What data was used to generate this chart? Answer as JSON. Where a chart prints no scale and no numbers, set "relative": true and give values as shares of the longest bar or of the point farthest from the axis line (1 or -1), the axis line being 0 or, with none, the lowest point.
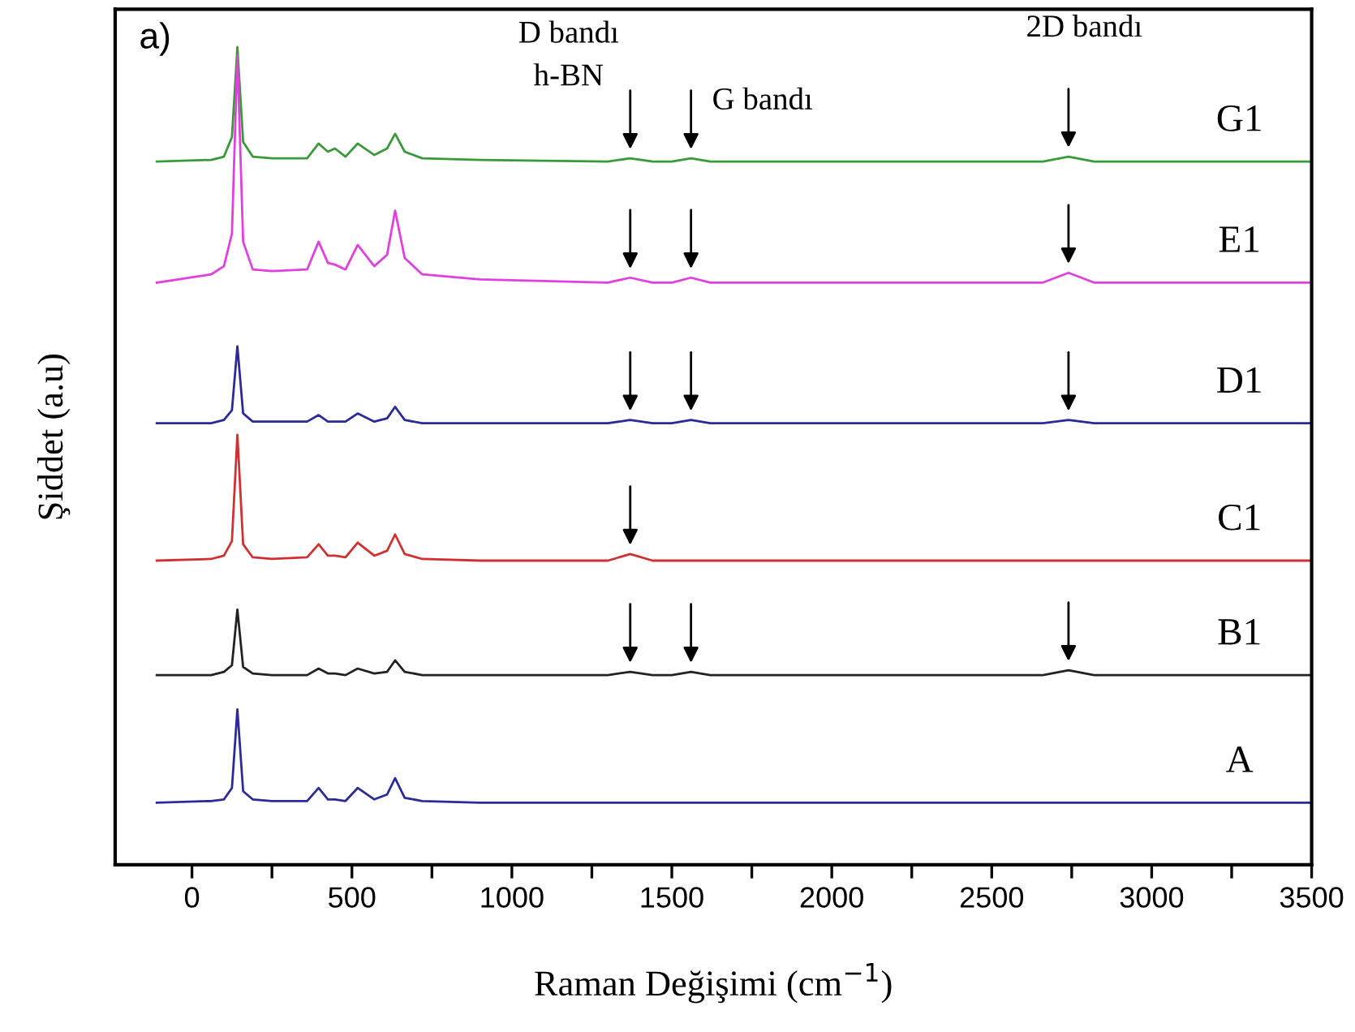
{
  "chart_data": {
    "type": "line",
    "relative": true,
    "xlabel": "Raman Değişimi (cm$^{−1}$)",
    "ylabel": "Şiddet (a.u)",
    "x": [
      -110,
      60,
      100,
      125,
      142,
      160,
      190,
      250,
      360,
      396,
      425,
      447,
      480,
      518,
      570,
      610,
      635,
      665,
      720,
      900,
      1300,
      1370,
      1440,
      1500,
      1560,
      1620,
      2660,
      2740,
      2820,
      3500
    ],
    "xlim": [
      -240,
      3500
    ],
    "xticks": [
      0,
      {
        "value": 250,
        "label": null
      },
      500,
      {
        "value": 750,
        "label": null
      },
      1000,
      {
        "value": 1250,
        "label": null
      },
      1500,
      {
        "value": 1750,
        "label": null
      },
      2000,
      {
        "value": 2250,
        "label": null
      },
      2500,
      {
        "value": 2750,
        "label": null
      },
      3000,
      {
        "value": 3250,
        "label": null
      },
      3500
    ],
    "grid": false,
    "legend": false,
    "marker": "none",
    "line_style": "solid",
    "series": [
      {
        "name": "G1",
        "color": "#3a9a3a",
        "values": [
          0.86,
          0.862,
          0.866,
          0.89,
          1.0,
          0.884,
          0.866,
          0.864,
          0.864,
          0.882,
          0.872,
          0.876,
          0.866,
          0.882,
          0.868,
          0.876,
          0.894,
          0.872,
          0.864,
          0.862,
          0.86,
          0.864,
          0.86,
          0.86,
          0.864,
          0.86,
          0.86,
          0.866,
          0.86,
          0.86
        ]
      },
      {
        "name": "E1",
        "color": "#e040e0",
        "values": [
          0.712,
          0.722,
          0.732,
          0.772,
          0.99,
          0.762,
          0.728,
          0.726,
          0.728,
          0.762,
          0.736,
          0.734,
          0.728,
          0.758,
          0.732,
          0.746,
          0.8,
          0.742,
          0.722,
          0.716,
          0.712,
          0.718,
          0.712,
          0.712,
          0.718,
          0.712,
          0.712,
          0.724,
          0.712,
          0.712
        ]
      },
      {
        "name": "D1",
        "color": "#2a2a9a",
        "values": [
          0.54,
          0.54,
          0.544,
          0.556,
          0.634,
          0.552,
          0.542,
          0.542,
          0.542,
          0.55,
          0.542,
          0.542,
          0.542,
          0.552,
          0.542,
          0.546,
          0.56,
          0.544,
          0.54,
          0.54,
          0.54,
          0.544,
          0.54,
          0.54,
          0.544,
          0.54,
          0.54,
          0.544,
          0.54,
          0.54
        ]
      },
      {
        "name": "C1",
        "color": "#d03030",
        "values": [
          0.372,
          0.374,
          0.378,
          0.396,
          0.526,
          0.392,
          0.376,
          0.374,
          0.376,
          0.392,
          0.378,
          0.378,
          0.376,
          0.394,
          0.378,
          0.384,
          0.404,
          0.38,
          0.374,
          0.372,
          0.372,
          0.38,
          0.372,
          0.372,
          0.372,
          0.372,
          0.372,
          0.372,
          0.372,
          0.372
        ]
      },
      {
        "name": "B1",
        "color": "#222222",
        "values": [
          0.232,
          0.232,
          0.236,
          0.244,
          0.312,
          0.242,
          0.234,
          0.232,
          0.232,
          0.24,
          0.234,
          0.234,
          0.232,
          0.24,
          0.234,
          0.236,
          0.25,
          0.236,
          0.232,
          0.232,
          0.232,
          0.236,
          0.232,
          0.232,
          0.236,
          0.232,
          0.232,
          0.238,
          0.232,
          0.232
        ]
      },
      {
        "name": "A",
        "color": "#2a2a9a",
        "values": [
          0.076,
          0.078,
          0.08,
          0.094,
          0.19,
          0.09,
          0.08,
          0.078,
          0.078,
          0.094,
          0.08,
          0.08,
          0.078,
          0.094,
          0.08,
          0.086,
          0.106,
          0.082,
          0.078,
          0.076,
          0.076,
          0.076,
          0.076,
          0.076,
          0.076,
          0.076,
          0.076,
          0.076,
          0.076,
          0.076
        ]
      }
    ],
    "annotations": [
      "a)",
      "D bandı",
      "h-BN",
      "G bandı",
      "2D bandı"
    ]
  }
}
